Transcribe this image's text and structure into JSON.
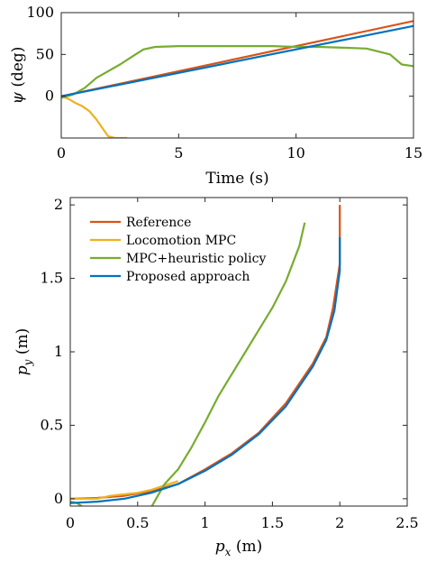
{
  "chart_data": [
    {
      "type": "line",
      "xlabel": "Time (s)",
      "ylabel": "ψ (deg)",
      "xlim": [
        0,
        15
      ],
      "ylim": [
        -50,
        100
      ],
      "xticks": [
        0,
        5,
        10,
        15
      ],
      "yticks": [
        0,
        50,
        100
      ],
      "grid": false,
      "series": [
        {
          "name": "Reference",
          "color": "#D95319",
          "points": [
            [
              0,
              0
            ],
            [
              15,
              90
            ]
          ]
        },
        {
          "name": "Locomotion MPC",
          "color": "#EDB120",
          "points": [
            [
              0,
              0
            ],
            [
              0.3,
              -3
            ],
            [
              0.6,
              -8
            ],
            [
              0.9,
              -12
            ],
            [
              1.2,
              -18
            ],
            [
              1.5,
              -28
            ],
            [
              1.8,
              -40
            ],
            [
              2.0,
              -48
            ],
            [
              2.3,
              -50
            ],
            [
              2.8,
              -50
            ]
          ]
        },
        {
          "name": "MPC+heuristic policy",
          "color": "#77AC30",
          "points": [
            [
              0,
              -2
            ],
            [
              0.5,
              2
            ],
            [
              1,
              10
            ],
            [
              1.5,
              22
            ],
            [
              2,
              30
            ],
            [
              2.5,
              38
            ],
            [
              3,
              47
            ],
            [
              3.5,
              56
            ],
            [
              4,
              59
            ],
            [
              5,
              60
            ],
            [
              6,
              60
            ],
            [
              7,
              60
            ],
            [
              8,
              60
            ],
            [
              9,
              60
            ],
            [
              10,
              59
            ],
            [
              11,
              59
            ],
            [
              12,
              58
            ],
            [
              13,
              57
            ],
            [
              14,
              50
            ],
            [
              14.5,
              38
            ],
            [
              15,
              36
            ]
          ]
        },
        {
          "name": "Proposed approach",
          "color": "#0072BD",
          "points": [
            [
              0,
              0
            ],
            [
              15,
              84
            ]
          ]
        }
      ]
    },
    {
      "type": "line",
      "xlabel": "p_x (m)",
      "ylabel": "p_y (m)",
      "xlim": [
        0,
        2.5
      ],
      "ylim": [
        -0.05,
        2.05
      ],
      "xticks": [
        "0",
        "0.5",
        "1",
        "1.5",
        "2",
        "2.5"
      ],
      "yticks": [
        "0",
        "0.5",
        "1",
        "1.5",
        "2"
      ],
      "legend": "top-left",
      "grid": false,
      "series": [
        {
          "name": "Reference",
          "color": "#D95319",
          "points": [
            [
              0,
              0
            ],
            [
              0.2,
              0.005
            ],
            [
              0.4,
              0.02
            ],
            [
              0.6,
              0.05
            ],
            [
              0.8,
              0.1
            ],
            [
              1.0,
              0.2
            ],
            [
              1.2,
              0.31
            ],
            [
              1.4,
              0.45
            ],
            [
              1.6,
              0.65
            ],
            [
              1.8,
              0.92
            ],
            [
              1.9,
              1.1
            ],
            [
              1.95,
              1.3
            ],
            [
              2.0,
              1.6
            ],
            [
              2.0,
              2.0
            ]
          ]
        },
        {
          "name": "Locomotion MPC",
          "color": "#EDB120",
          "points": [
            [
              0,
              0
            ],
            [
              0.1,
              0.0
            ],
            [
              0.2,
              0.0
            ],
            [
              0.3,
              0.02
            ],
            [
              0.4,
              0.03
            ],
            [
              0.5,
              0.04
            ],
            [
              0.6,
              0.06
            ],
            [
              0.7,
              0.09
            ],
            [
              0.8,
              0.12
            ]
          ]
        },
        {
          "name": "MPC+heuristic policy",
          "color": "#77AC30",
          "points": [
            [
              0,
              -0.02
            ],
            [
              0.05,
              -0.03
            ],
            [
              0.1,
              -0.06
            ],
            [
              0.2,
              -0.08
            ],
            [
              0.3,
              -0.11
            ],
            [
              0.4,
              -0.12
            ],
            [
              0.5,
              -0.12
            ],
            [
              0.55,
              -0.11
            ],
            [
              0.6,
              -0.06
            ],
            [
              0.65,
              0.02
            ],
            [
              0.7,
              0.1
            ],
            [
              0.8,
              0.2
            ],
            [
              0.9,
              0.35
            ],
            [
              1.0,
              0.52
            ],
            [
              1.1,
              0.7
            ],
            [
              1.2,
              0.85
            ],
            [
              1.3,
              1.0
            ],
            [
              1.4,
              1.15
            ],
            [
              1.5,
              1.3
            ],
            [
              1.6,
              1.48
            ],
            [
              1.7,
              1.72
            ],
            [
              1.74,
              1.88
            ]
          ]
        },
        {
          "name": "Proposed approach",
          "color": "#0072BD",
          "points": [
            [
              0,
              -0.03
            ],
            [
              0.2,
              -0.02
            ],
            [
              0.4,
              0.0
            ],
            [
              0.6,
              0.04
            ],
            [
              0.8,
              0.1
            ],
            [
              1.0,
              0.19
            ],
            [
              1.2,
              0.3
            ],
            [
              1.4,
              0.44
            ],
            [
              1.6,
              0.63
            ],
            [
              1.8,
              0.9
            ],
            [
              1.9,
              1.08
            ],
            [
              1.96,
              1.28
            ],
            [
              2.0,
              1.55
            ],
            [
              2.0,
              1.78
            ]
          ]
        }
      ]
    }
  ]
}
